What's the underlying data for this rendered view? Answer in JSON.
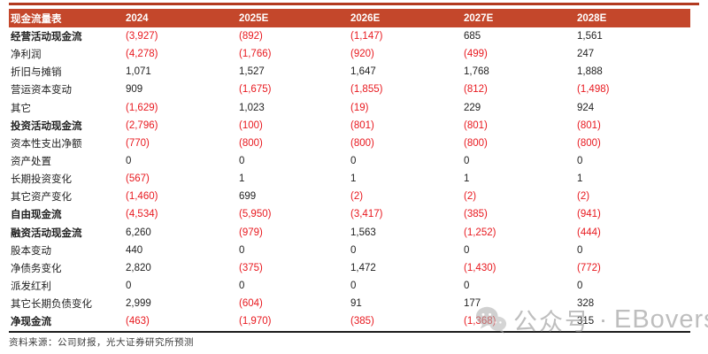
{
  "table": {
    "title": "现金流量表",
    "columns": [
      "2024",
      "2025E",
      "2026E",
      "2027E",
      "2028E"
    ],
    "rows": [
      {
        "label": "经营活动现金流",
        "bold": true,
        "values": [
          "(3,927)",
          "(892)",
          "(1,147)",
          "685",
          "1,561"
        ]
      },
      {
        "label": "净利润",
        "bold": false,
        "values": [
          "(4,278)",
          "(1,766)",
          "(920)",
          "(499)",
          "247"
        ]
      },
      {
        "label": "折旧与摊销",
        "bold": false,
        "values": [
          "1,071",
          "1,527",
          "1,647",
          "1,768",
          "1,888"
        ]
      },
      {
        "label": "营运资本变动",
        "bold": false,
        "values": [
          "909",
          "(1,675)",
          "(1,855)",
          "(812)",
          "(1,498)"
        ]
      },
      {
        "label": "其它",
        "bold": false,
        "values": [
          "(1,629)",
          "1,023",
          "(19)",
          "229",
          "924"
        ]
      },
      {
        "label": "投资活动现金流",
        "bold": true,
        "values": [
          "(2,796)",
          "(100)",
          "(801)",
          "(801)",
          "(801)"
        ]
      },
      {
        "label": "资本性支出净额",
        "bold": false,
        "values": [
          "(770)",
          "(800)",
          "(800)",
          "(800)",
          "(800)"
        ]
      },
      {
        "label": "资产处置",
        "bold": false,
        "values": [
          "0",
          "0",
          "0",
          "0",
          "0"
        ]
      },
      {
        "label": "长期投资变化",
        "bold": false,
        "values": [
          "(567)",
          "1",
          "1",
          "1",
          "1"
        ]
      },
      {
        "label": "其它资产变化",
        "bold": false,
        "values": [
          "(1,460)",
          "699",
          "(2)",
          "(2)",
          "(2)"
        ]
      },
      {
        "label": "自由现金流",
        "bold": true,
        "values": [
          "(4,534)",
          "(5,950)",
          "(3,417)",
          "(385)",
          "(941)"
        ]
      },
      {
        "label": "融资活动现金流",
        "bold": true,
        "values": [
          "6,260",
          "(979)",
          "1,563",
          "(1,252)",
          "(444)"
        ]
      },
      {
        "label": "股本变动",
        "bold": false,
        "values": [
          "440",
          "0",
          "0",
          "0",
          "0"
        ]
      },
      {
        "label": "净债务变化",
        "bold": false,
        "values": [
          "2,820",
          "(375)",
          "1,472",
          "(1,430)",
          "(772)"
        ]
      },
      {
        "label": "派发红利",
        "bold": false,
        "values": [
          "0",
          "0",
          "0",
          "0",
          "0"
        ]
      },
      {
        "label": "其它长期负债变化",
        "bold": false,
        "values": [
          "2,999",
          "(604)",
          "91",
          "177",
          "328"
        ]
      },
      {
        "label": "净现金流",
        "bold": true,
        "values": [
          "(463)",
          "(1,970)",
          "(385)",
          "(1,368)",
          "315"
        ]
      }
    ]
  },
  "footer": {
    "source": "资料来源：公司财报，光大证券研究所预测"
  },
  "watermark": {
    "icon": "wechat-icon",
    "label": "公众号",
    "separator": "·",
    "name": "EBoversea"
  },
  "colors": {
    "header_bg": "#c4472b",
    "top_line": "#b23a1f",
    "negative": "#e8191f",
    "text": "#1f1f1f",
    "bottom_line": "#1c1c1c",
    "watermark": "#9a9a9a"
  }
}
